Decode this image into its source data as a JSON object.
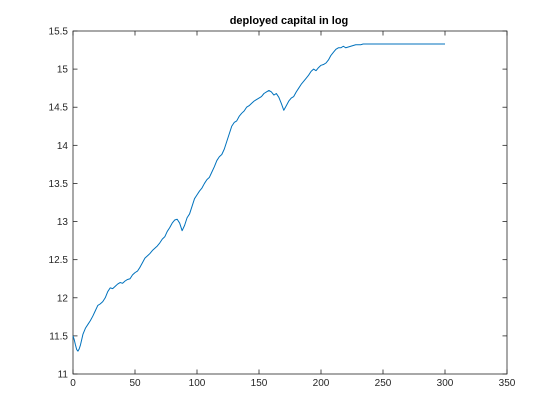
{
  "chart_data": {
    "type": "line",
    "title": "deployed capital in log",
    "xlabel": "",
    "ylabel": "",
    "xlim": [
      0,
      350
    ],
    "ylim": [
      11,
      15.5
    ],
    "xticks": [
      0,
      50,
      100,
      150,
      200,
      250,
      300,
      350
    ],
    "yticks": [
      11,
      11.5,
      12,
      12.5,
      13,
      13.5,
      14,
      14.5,
      15,
      15.5
    ],
    "xtick_labels": [
      "0",
      "50",
      "100",
      "150",
      "200",
      "250",
      "300",
      "350"
    ],
    "ytick_labels": [
      "11",
      "11.5",
      "12",
      "12.5",
      "13",
      "13.5",
      "14",
      "14.5",
      "15",
      "15.5"
    ],
    "grid": false,
    "line_color": "#0072BD",
    "series": [
      {
        "x": [
          0,
          1,
          2,
          3,
          4,
          5,
          6,
          7,
          8,
          10,
          12,
          14,
          16,
          18,
          20,
          22,
          24,
          26,
          28,
          30,
          32,
          34,
          36,
          38,
          40,
          42,
          44,
          46,
          48,
          50,
          52,
          54,
          56,
          58,
          60,
          62,
          64,
          66,
          68,
          70,
          72,
          74,
          76,
          78,
          80,
          82,
          84,
          86,
          88,
          90,
          92,
          94,
          96,
          98,
          100,
          102,
          104,
          106,
          108,
          110,
          112,
          114,
          116,
          118,
          120,
          122,
          124,
          126,
          128,
          130,
          132,
          134,
          136,
          138,
          140,
          142,
          144,
          146,
          148,
          150,
          152,
          154,
          156,
          158,
          160,
          162,
          164,
          166,
          168,
          170,
          172,
          174,
          176,
          178,
          180,
          182,
          184,
          186,
          188,
          190,
          192,
          194,
          196,
          198,
          200,
          202,
          204,
          206,
          208,
          210,
          212,
          214,
          216,
          218,
          220,
          222,
          224,
          226,
          228,
          230,
          232,
          234,
          236,
          238,
          240,
          242,
          244,
          246,
          248,
          250,
          252,
          254,
          256,
          258,
          260,
          262,
          264,
          266,
          268,
          270,
          272,
          274,
          276,
          278,
          280,
          282,
          284,
          286,
          288,
          290,
          292,
          294,
          296,
          298,
          300
        ],
        "values": [
          11.5,
          11.45,
          11.38,
          11.32,
          11.3,
          11.33,
          11.38,
          11.45,
          11.52,
          11.6,
          11.65,
          11.7,
          11.76,
          11.83,
          11.9,
          11.92,
          11.95,
          12.0,
          12.08,
          12.13,
          12.12,
          12.15,
          12.18,
          12.2,
          12.19,
          12.22,
          12.24,
          12.25,
          12.3,
          12.33,
          12.35,
          12.4,
          12.46,
          12.52,
          12.55,
          12.58,
          12.62,
          12.65,
          12.68,
          12.72,
          12.77,
          12.8,
          12.87,
          12.92,
          12.98,
          13.02,
          13.03,
          12.98,
          12.88,
          12.95,
          13.05,
          13.1,
          13.2,
          13.3,
          13.35,
          13.4,
          13.44,
          13.5,
          13.55,
          13.58,
          13.65,
          13.72,
          13.8,
          13.85,
          13.88,
          13.95,
          14.05,
          14.15,
          14.25,
          14.3,
          14.32,
          14.38,
          14.42,
          14.45,
          14.5,
          14.52,
          14.55,
          14.58,
          14.6,
          14.62,
          14.64,
          14.68,
          14.7,
          14.72,
          14.7,
          14.66,
          14.68,
          14.63,
          14.55,
          14.46,
          14.52,
          14.58,
          14.62,
          14.64,
          14.7,
          14.75,
          14.8,
          14.84,
          14.88,
          14.92,
          14.97,
          15.0,
          14.98,
          15.02,
          15.05,
          15.06,
          15.08,
          15.12,
          15.18,
          15.22,
          15.26,
          15.28,
          15.28,
          15.3,
          15.28,
          15.29,
          15.3,
          15.31,
          15.32,
          15.32,
          15.32,
          15.33,
          15.33,
          15.33,
          15.33,
          15.33,
          15.33,
          15.33,
          15.33,
          15.33,
          15.33,
          15.33,
          15.33,
          15.33,
          15.33,
          15.33,
          15.33,
          15.33,
          15.33,
          15.33,
          15.33,
          15.33,
          15.33,
          15.33,
          15.33,
          15.33,
          15.33,
          15.33,
          15.33,
          15.33,
          15.33,
          15.33,
          15.33,
          15.33,
          15.33
        ]
      }
    ]
  }
}
